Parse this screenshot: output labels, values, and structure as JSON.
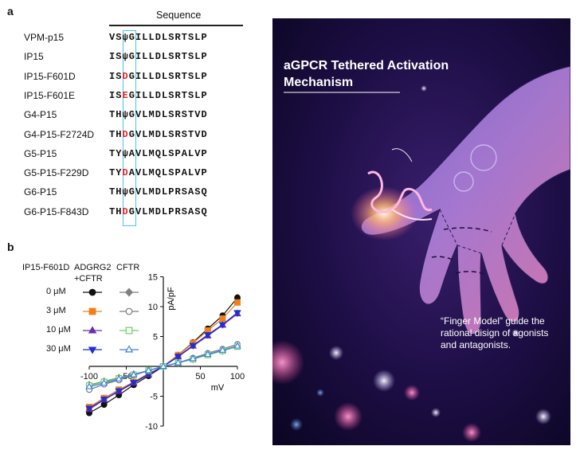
{
  "panel_a": {
    "label": "a",
    "header": "Sequence",
    "rows": [
      {
        "name": "VPM-p15",
        "pre": "VS",
        "site": "ψ",
        "mutant": false,
        "post": "GILLDLSRTSLP"
      },
      {
        "name": "IP15",
        "pre": "IS",
        "site": "ψ",
        "mutant": false,
        "post": "GILLDLSRTSLP"
      },
      {
        "name": "IP15-F601D",
        "pre": "IS",
        "site": "D",
        "mutant": true,
        "post": "GILLDLSRTSLP"
      },
      {
        "name": "IP15-F601E",
        "pre": "IS",
        "site": "E",
        "mutant": true,
        "post": "GILLDLSRTSLP"
      },
      {
        "name": "G4-P15",
        "pre": "TH",
        "site": "ψ",
        "mutant": false,
        "post": "GVLMDLSRSTVD"
      },
      {
        "name": "G4-P15-F2724D",
        "pre": "TH",
        "site": "D",
        "mutant": true,
        "post": "GVLMDLSRSTVD"
      },
      {
        "name": "G5-P15",
        "pre": "TY",
        "site": "ψ",
        "mutant": false,
        "post": "AVLMQLSPALVP"
      },
      {
        "name": "G5-P15-F229D",
        "pre": "TY",
        "site": "D",
        "mutant": true,
        "post": "AVLMQLSPALVP"
      },
      {
        "name": "G6-P15",
        "pre": "TH",
        "site": "ψ",
        "mutant": false,
        "post": "GVLMDLPRSASQ"
      },
      {
        "name": "G6-P15-F843D",
        "pre": "TH",
        "site": "D",
        "mutant": true,
        "post": "GVLMDLPRSASQ"
      }
    ]
  },
  "panel_b": {
    "label": "b",
    "legend_title_peptide": "IP15-F601D",
    "legend_title_cells": "ADGRG2",
    "legend_title_cells_line2": "+CFTR",
    "legend_title_control": "CFTR",
    "concentrations": [
      "0 μM",
      "3 μM",
      "10 μM",
      "30 μM"
    ]
  },
  "chart_data": {
    "type": "line",
    "title": "",
    "xlabel": "mV",
    "ylabel": "pA/pF",
    "xlim": [
      -100,
      100
    ],
    "ylim": [
      -10,
      15
    ],
    "xticks": [
      -100,
      -50,
      50,
      100
    ],
    "yticks": [
      -10,
      -5,
      5,
      10,
      15
    ],
    "xtick_labels": [
      "-100",
      "-50",
      "50",
      "100"
    ],
    "ytick_labels": [
      "-10",
      "-5",
      "5",
      "10",
      "15"
    ],
    "x": [
      -100,
      -80,
      -60,
      -40,
      -20,
      0,
      20,
      40,
      60,
      80,
      100
    ],
    "series": [
      {
        "name": "ADGRG2+CFTR 0 μM",
        "color": "#111111",
        "marker": "circle",
        "filled": true,
        "values": [
          -7.8,
          -6.4,
          -4.8,
          -3.1,
          -1.6,
          0,
          1.9,
          4.0,
          6.3,
          8.5,
          11.5
        ],
        "errors": [
          0.5,
          0.5,
          0.4,
          0.3,
          0.2,
          0,
          0.2,
          0.3,
          0.4,
          0.5,
          0.6
        ]
      },
      {
        "name": "ADGRG2+CFTR 3 μM",
        "color": "#f07f1a",
        "marker": "square",
        "filled": true,
        "values": [
          -6.8,
          -5.3,
          -3.9,
          -2.6,
          -1.2,
          0,
          1.9,
          3.9,
          6.0,
          8.0,
          10.7
        ],
        "errors": [
          0.4,
          0.4,
          0.3,
          0.3,
          0.2,
          0,
          0.2,
          0.3,
          0.4,
          0.5,
          0.5
        ]
      },
      {
        "name": "ADGRG2+CFTR 10 μM",
        "color": "#6a2fa6",
        "marker": "triangle",
        "filled": true,
        "values": [
          -7.2,
          -5.6,
          -4.2,
          -2.8,
          -1.4,
          0,
          1.6,
          3.4,
          5.1,
          6.9,
          8.8
        ],
        "errors": [
          0.4,
          0.4,
          0.3,
          0.3,
          0.2,
          0,
          0.2,
          0.3,
          0.4,
          0.4,
          0.5
        ]
      },
      {
        "name": "ADGRG2+CFTR 30 μM",
        "color": "#1f2fd6",
        "marker": "triangle-down",
        "filled": true,
        "values": [
          -7.0,
          -5.5,
          -4.1,
          -2.7,
          -1.3,
          0,
          1.7,
          3.5,
          5.3,
          7.0,
          9.0
        ],
        "errors": [
          0.4,
          0.4,
          0.3,
          0.3,
          0.2,
          0,
          0.2,
          0.3,
          0.4,
          0.4,
          0.5
        ]
      },
      {
        "name": "CFTR 0 μM",
        "color": "#808080",
        "marker": "diamond",
        "filled": true,
        "values": [
          -3.1,
          -2.5,
          -1.9,
          -1.3,
          -0.7,
          0,
          0.6,
          1.2,
          2.0,
          2.6,
          3.4
        ],
        "errors": [
          0.2,
          0.2,
          0.2,
          0.2,
          0.1,
          0,
          0.1,
          0.2,
          0.2,
          0.2,
          0.3
        ]
      },
      {
        "name": "CFTR 3 μM",
        "color": "#7a7a7a",
        "marker": "circle",
        "filled": false,
        "values": [
          -3.9,
          -3.0,
          -2.3,
          -1.5,
          -0.7,
          0,
          0.6,
          1.4,
          2.2,
          2.9,
          3.7
        ],
        "errors": [
          0.2,
          0.2,
          0.2,
          0.2,
          0.1,
          0,
          0.1,
          0.2,
          0.2,
          0.2,
          0.3
        ]
      },
      {
        "name": "CFTR 10 μM",
        "color": "#6ccf66",
        "marker": "square",
        "filled": false,
        "values": [
          -3.2,
          -2.6,
          -2.0,
          -1.4,
          -0.7,
          0,
          0.6,
          1.2,
          1.9,
          2.6,
          3.3
        ],
        "errors": [
          0.2,
          0.2,
          0.2,
          0.2,
          0.1,
          0,
          0.1,
          0.2,
          0.2,
          0.2,
          0.3
        ]
      },
      {
        "name": "CFTR 30 μM",
        "color": "#3f7fe8",
        "marker": "triangle",
        "filled": false,
        "values": [
          -3.4,
          -2.8,
          -2.1,
          -1.4,
          -0.7,
          0,
          0.6,
          1.3,
          2.0,
          2.7,
          3.4
        ],
        "errors": [
          0.2,
          0.2,
          0.2,
          0.2,
          0.1,
          0,
          0.1,
          0.2,
          0.2,
          0.2,
          0.3
        ]
      }
    ]
  },
  "cover": {
    "title_line1": "aGPCR Tethered Activation",
    "title_line2": "Mechanism",
    "caption_line1": "“Finger Model” guide the",
    "caption_line2": "rational disign of agonists",
    "caption_line3": "and antagonists.",
    "background_color": "#170a37",
    "accent_color": "#ff8fc8"
  }
}
